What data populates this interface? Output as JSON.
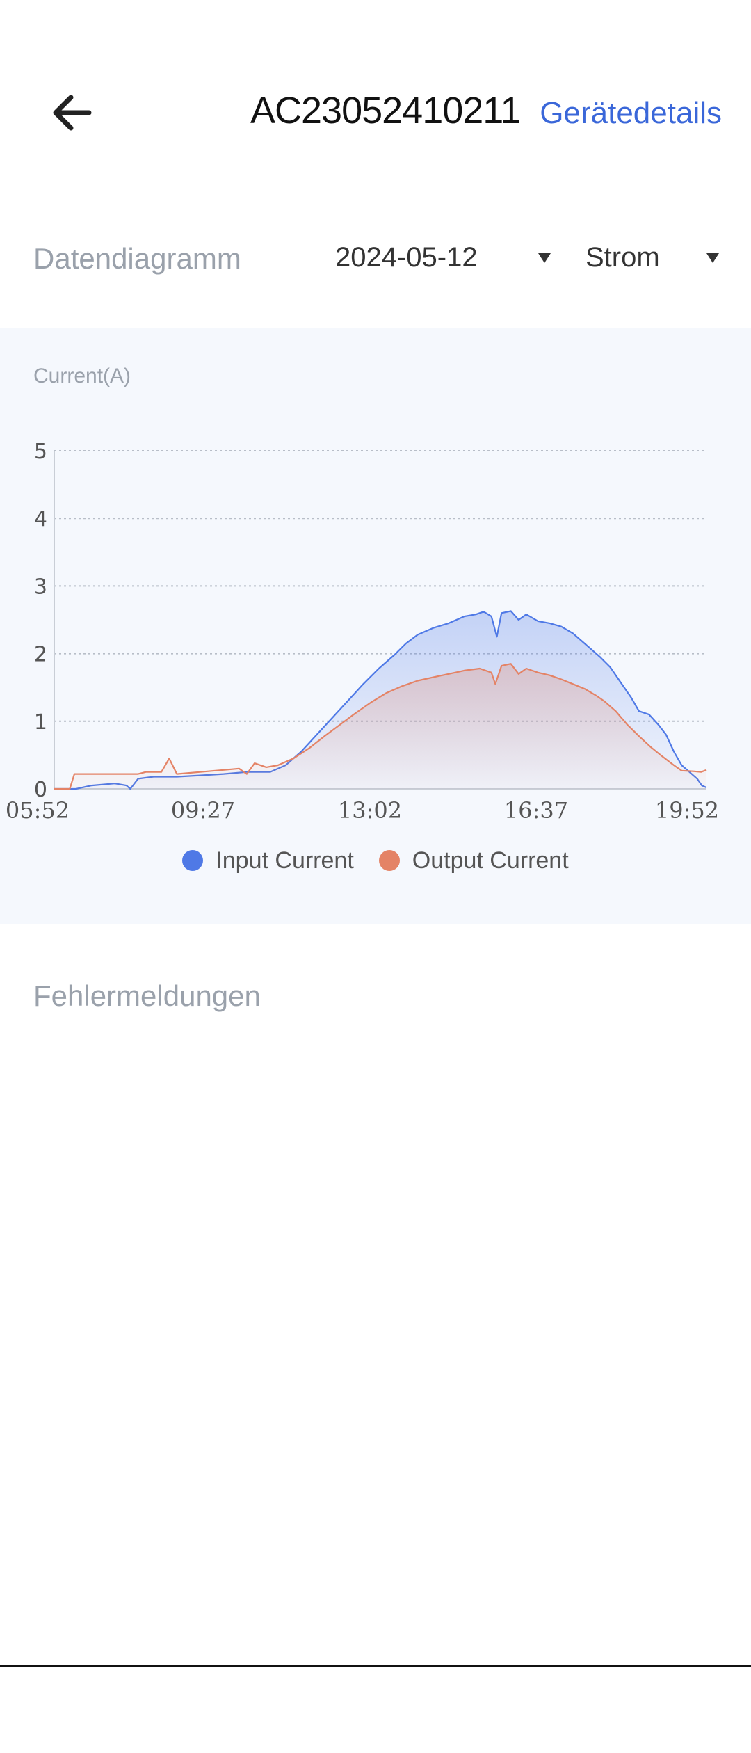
{
  "header": {
    "title": "AC23052410211",
    "details_link": "Gerätedetails",
    "back_icon": "arrow-left-icon"
  },
  "filters": {
    "label": "Datendiagramm",
    "date": "2024-05-12",
    "mode": "Strom"
  },
  "colors": {
    "accent": "#3a67d9",
    "input_series": "#4f79e6",
    "output_series": "#e48366",
    "panel_bg": "#f5f8fd"
  },
  "chart_data": {
    "type": "area",
    "ylabel": "Current(A)",
    "x_ticks": [
      "05:52",
      "09:27",
      "13:02",
      "16:37",
      "19:52"
    ],
    "x_range_minutes": [
      352,
      1192
    ],
    "y_ticks": [
      "0",
      "1",
      "2",
      "3",
      "4",
      "5"
    ],
    "ylim": [
      0,
      5
    ],
    "grid": true,
    "legend_position": "bottom",
    "series": [
      {
        "name": "Input Current",
        "color": "#4f79e6",
        "points": [
          [
            352,
            0
          ],
          [
            380,
            0
          ],
          [
            400,
            0.05
          ],
          [
            430,
            0.08
          ],
          [
            445,
            0.05
          ],
          [
            450,
            0.0
          ],
          [
            460,
            0.15
          ],
          [
            480,
            0.18
          ],
          [
            510,
            0.18
          ],
          [
            540,
            0.2
          ],
          [
            570,
            0.22
          ],
          [
            600,
            0.25
          ],
          [
            630,
            0.25
          ],
          [
            650,
            0.35
          ],
          [
            670,
            0.55
          ],
          [
            690,
            0.8
          ],
          [
            710,
            1.05
          ],
          [
            730,
            1.3
          ],
          [
            750,
            1.55
          ],
          [
            770,
            1.78
          ],
          [
            790,
            1.98
          ],
          [
            805,
            2.15
          ],
          [
            820,
            2.28
          ],
          [
            840,
            2.38
          ],
          [
            860,
            2.45
          ],
          [
            880,
            2.55
          ],
          [
            895,
            2.58
          ],
          [
            905,
            2.62
          ],
          [
            915,
            2.55
          ],
          [
            922,
            2.25
          ],
          [
            928,
            2.6
          ],
          [
            940,
            2.63
          ],
          [
            950,
            2.5
          ],
          [
            960,
            2.58
          ],
          [
            975,
            2.48
          ],
          [
            990,
            2.45
          ],
          [
            1005,
            2.4
          ],
          [
            1020,
            2.3
          ],
          [
            1035,
            2.15
          ],
          [
            1045,
            2.05
          ],
          [
            1055,
            1.95
          ],
          [
            1068,
            1.8
          ],
          [
            1080,
            1.6
          ],
          [
            1095,
            1.35
          ],
          [
            1105,
            1.15
          ],
          [
            1118,
            1.1
          ],
          [
            1130,
            0.95
          ],
          [
            1140,
            0.8
          ],
          [
            1150,
            0.55
          ],
          [
            1160,
            0.35
          ],
          [
            1170,
            0.25
          ],
          [
            1180,
            0.15
          ],
          [
            1186,
            0.05
          ],
          [
            1192,
            0.02
          ]
        ]
      },
      {
        "name": "Output Current",
        "color": "#e48366",
        "points": [
          [
            352,
            0
          ],
          [
            372,
            0
          ],
          [
            378,
            0.22
          ],
          [
            400,
            0.22
          ],
          [
            430,
            0.22
          ],
          [
            460,
            0.22
          ],
          [
            470,
            0.25
          ],
          [
            490,
            0.25
          ],
          [
            500,
            0.45
          ],
          [
            510,
            0.22
          ],
          [
            540,
            0.25
          ],
          [
            570,
            0.28
          ],
          [
            590,
            0.3
          ],
          [
            600,
            0.22
          ],
          [
            610,
            0.38
          ],
          [
            625,
            0.32
          ],
          [
            640,
            0.35
          ],
          [
            660,
            0.45
          ],
          [
            680,
            0.6
          ],
          [
            700,
            0.78
          ],
          [
            720,
            0.95
          ],
          [
            740,
            1.12
          ],
          [
            760,
            1.28
          ],
          [
            780,
            1.42
          ],
          [
            800,
            1.52
          ],
          [
            820,
            1.6
          ],
          [
            840,
            1.65
          ],
          [
            860,
            1.7
          ],
          [
            880,
            1.75
          ],
          [
            900,
            1.78
          ],
          [
            915,
            1.72
          ],
          [
            920,
            1.55
          ],
          [
            928,
            1.82
          ],
          [
            940,
            1.85
          ],
          [
            950,
            1.7
          ],
          [
            960,
            1.78
          ],
          [
            975,
            1.72
          ],
          [
            990,
            1.68
          ],
          [
            1005,
            1.62
          ],
          [
            1020,
            1.55
          ],
          [
            1035,
            1.48
          ],
          [
            1050,
            1.38
          ],
          [
            1060,
            1.3
          ],
          [
            1075,
            1.15
          ],
          [
            1090,
            0.95
          ],
          [
            1105,
            0.78
          ],
          [
            1120,
            0.62
          ],
          [
            1135,
            0.48
          ],
          [
            1150,
            0.35
          ],
          [
            1160,
            0.27
          ],
          [
            1175,
            0.26
          ],
          [
            1185,
            0.25
          ],
          [
            1192,
            0.28
          ]
        ]
      }
    ]
  },
  "errors": {
    "title": "Fehlermeldungen"
  }
}
